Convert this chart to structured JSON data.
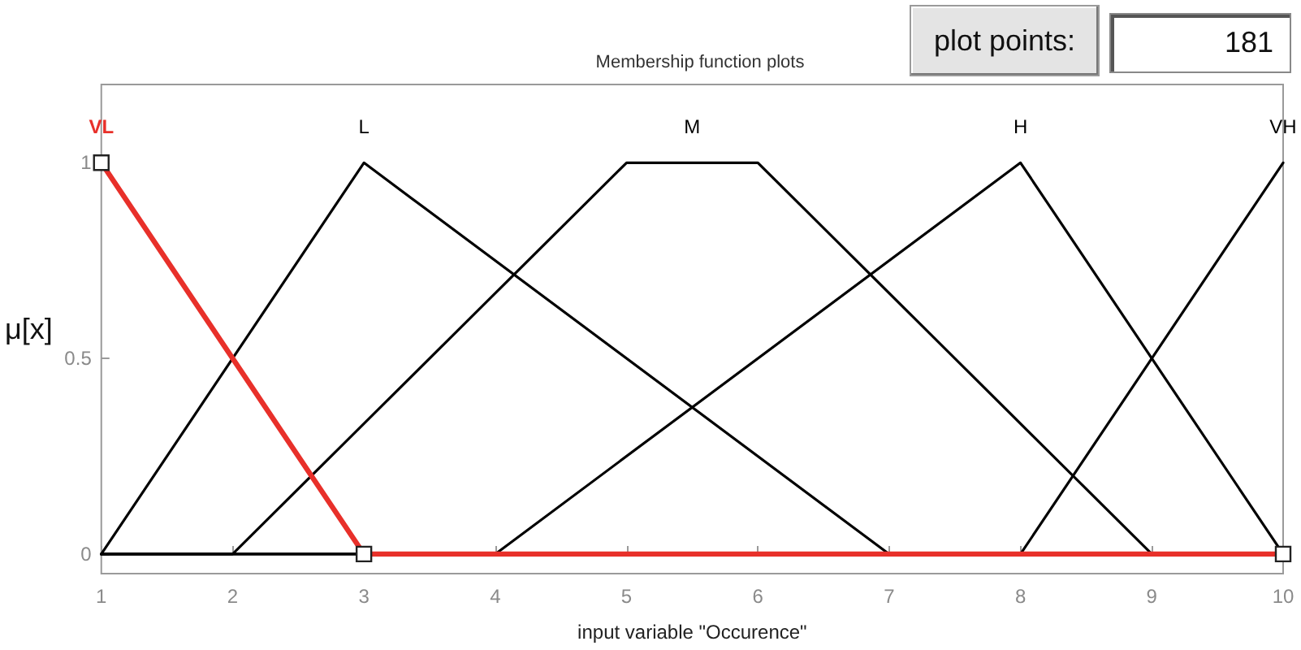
{
  "chart_data": {
    "type": "line",
    "title": "Membership function plots",
    "xlabel": "input variable \"Occurence\"",
    "ylabel": "μ[x]",
    "annotations": [
      "plot points:",
      "181"
    ],
    "series": [
      {
        "name": "VL",
        "color": "#e8302a",
        "marker": "square",
        "x": [
          1,
          3,
          10
        ],
        "values": [
          1,
          0,
          0
        ]
      },
      {
        "name": "L",
        "color": "#000000",
        "x": [
          1,
          3,
          7,
          10
        ],
        "values": [
          0,
          1,
          0,
          0
        ]
      },
      {
        "name": "M",
        "color": "#000000",
        "x": [
          1,
          2,
          5,
          6,
          9,
          10
        ],
        "values": [
          0,
          0,
          1,
          1,
          0,
          0
        ]
      },
      {
        "name": "H",
        "color": "#000000",
        "x": [
          1,
          4,
          8,
          10
        ],
        "values": [
          0,
          0,
          1,
          0
        ]
      },
      {
        "name": "VH",
        "color": "#000000",
        "x": [
          1,
          8,
          10
        ],
        "values": [
          0,
          0,
          1
        ]
      }
    ],
    "xlim": [
      1,
      10
    ],
    "xticks": [
      1,
      2,
      3,
      4,
      5,
      6,
      7,
      8,
      9,
      10
    ],
    "ylim": [
      -0.05,
      1.2
    ],
    "yticks": [
      0,
      0.5,
      1
    ],
    "grid": false,
    "legend": false
  }
}
